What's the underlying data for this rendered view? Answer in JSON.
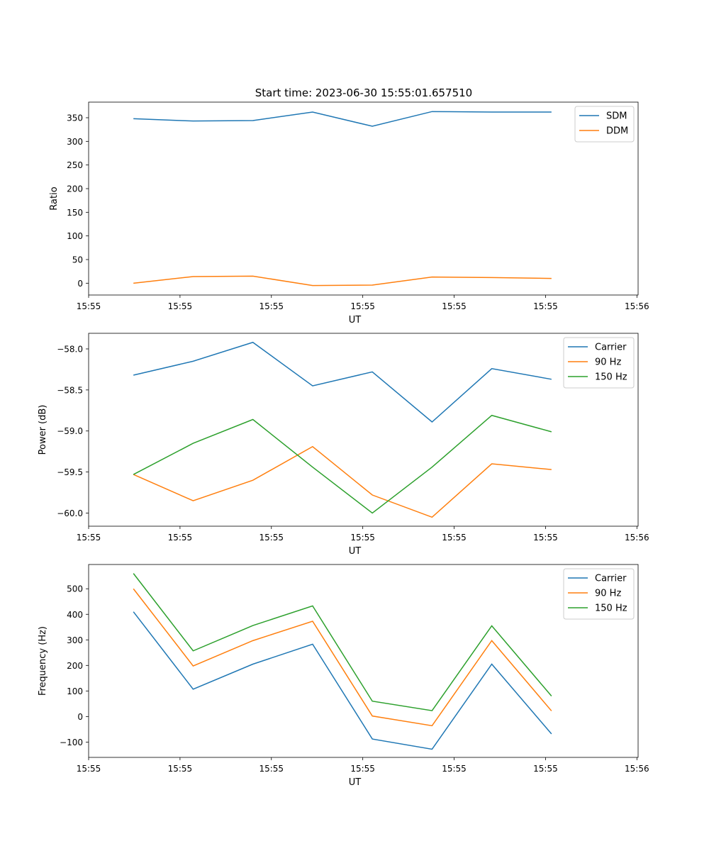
{
  "figure": {
    "title": "Start time: 2023-06-30 15:55:01.657510"
  },
  "chart_data": [
    {
      "type": "line",
      "title": "Start time: 2023-06-30 15:55:01.657510",
      "xlabel": "UT",
      "ylabel": "Ratio",
      "x": [
        0,
        1,
        2,
        3,
        4,
        5,
        6,
        7
      ],
      "xlim": [
        -0.75,
        8.45
      ],
      "xtick_positions": [
        -0.75,
        0.78,
        2.31,
        3.84,
        5.37,
        6.9,
        8.43
      ],
      "xtick_labels": [
        "15:55",
        "15:55",
        "15:55",
        "15:55",
        "15:55",
        "15:55",
        "15:56"
      ],
      "ylim": [
        -25,
        383
      ],
      "yticks": [
        0,
        50,
        100,
        150,
        200,
        250,
        300,
        350
      ],
      "legend": "top-right",
      "grid": false,
      "series": [
        {
          "name": "SDM",
          "color": "#1f77b4",
          "values": [
            348,
            343,
            344,
            362,
            332,
            363,
            362,
            362
          ]
        },
        {
          "name": "DDM",
          "color": "#ff7f0e",
          "values": [
            0,
            14,
            15,
            -5,
            -4,
            13,
            12,
            10
          ]
        }
      ]
    },
    {
      "type": "line",
      "xlabel": "UT",
      "ylabel": "Power (dB)",
      "x": [
        0,
        1,
        2,
        3,
        4,
        5,
        6,
        7
      ],
      "xlim": [
        -0.75,
        8.45
      ],
      "xtick_positions": [
        -0.75,
        0.78,
        2.31,
        3.84,
        5.37,
        6.9,
        8.43
      ],
      "xtick_labels": [
        "15:55",
        "15:55",
        "15:55",
        "15:55",
        "15:55",
        "15:55",
        "15:56"
      ],
      "ylim": [
        -60.16,
        -57.81
      ],
      "yticks": [
        -60.0,
        -59.5,
        -59.0,
        -58.5,
        -58.0
      ],
      "ytick_labels": [
        "−60.0",
        "−59.5",
        "−59.0",
        "−58.5",
        "−58.0"
      ],
      "legend": "top-right",
      "grid": false,
      "series": [
        {
          "name": "Carrier",
          "color": "#1f77b4",
          "values": [
            -58.32,
            -58.15,
            -57.92,
            -58.45,
            -58.28,
            -58.89,
            -58.24,
            -58.37
          ]
        },
        {
          "name": "90 Hz",
          "color": "#ff7f0e",
          "values": [
            -59.53,
            -59.85,
            -59.6,
            -59.19,
            -59.78,
            -60.05,
            -59.4,
            -59.47
          ]
        },
        {
          "name": "150 Hz",
          "color": "#2ca02c",
          "values": [
            -59.53,
            -59.15,
            -58.86,
            -59.44,
            -60.0,
            -59.44,
            -58.81,
            -59.01
          ]
        }
      ]
    },
    {
      "type": "line",
      "xlabel": "UT",
      "ylabel": "Frequency (Hz)",
      "x": [
        0,
        1,
        2,
        3,
        4,
        5,
        6,
        7
      ],
      "xlim": [
        -0.75,
        8.45
      ],
      "xtick_positions": [
        -0.75,
        0.78,
        2.31,
        3.84,
        5.37,
        6.9,
        8.43
      ],
      "xtick_labels": [
        "15:55",
        "15:55",
        "15:55",
        "15:55",
        "15:55",
        "15:55",
        "15:56"
      ],
      "ylim": [
        -160,
        595
      ],
      "yticks": [
        -100,
        0,
        100,
        200,
        300,
        400,
        500
      ],
      "ytick_labels": [
        "−100",
        "0",
        "100",
        "200",
        "300",
        "400",
        "500"
      ],
      "legend": "top-right",
      "grid": false,
      "series": [
        {
          "name": "Carrier",
          "color": "#1f77b4",
          "values": [
            410,
            107,
            205,
            283,
            -88,
            -128,
            205,
            -68
          ]
        },
        {
          "name": "90 Hz",
          "color": "#ff7f0e",
          "values": [
            500,
            198,
            297,
            373,
            2,
            -36,
            297,
            22
          ]
        },
        {
          "name": "150 Hz",
          "color": "#2ca02c",
          "values": [
            560,
            257,
            356,
            433,
            60,
            23,
            355,
            80
          ]
        }
      ]
    }
  ]
}
